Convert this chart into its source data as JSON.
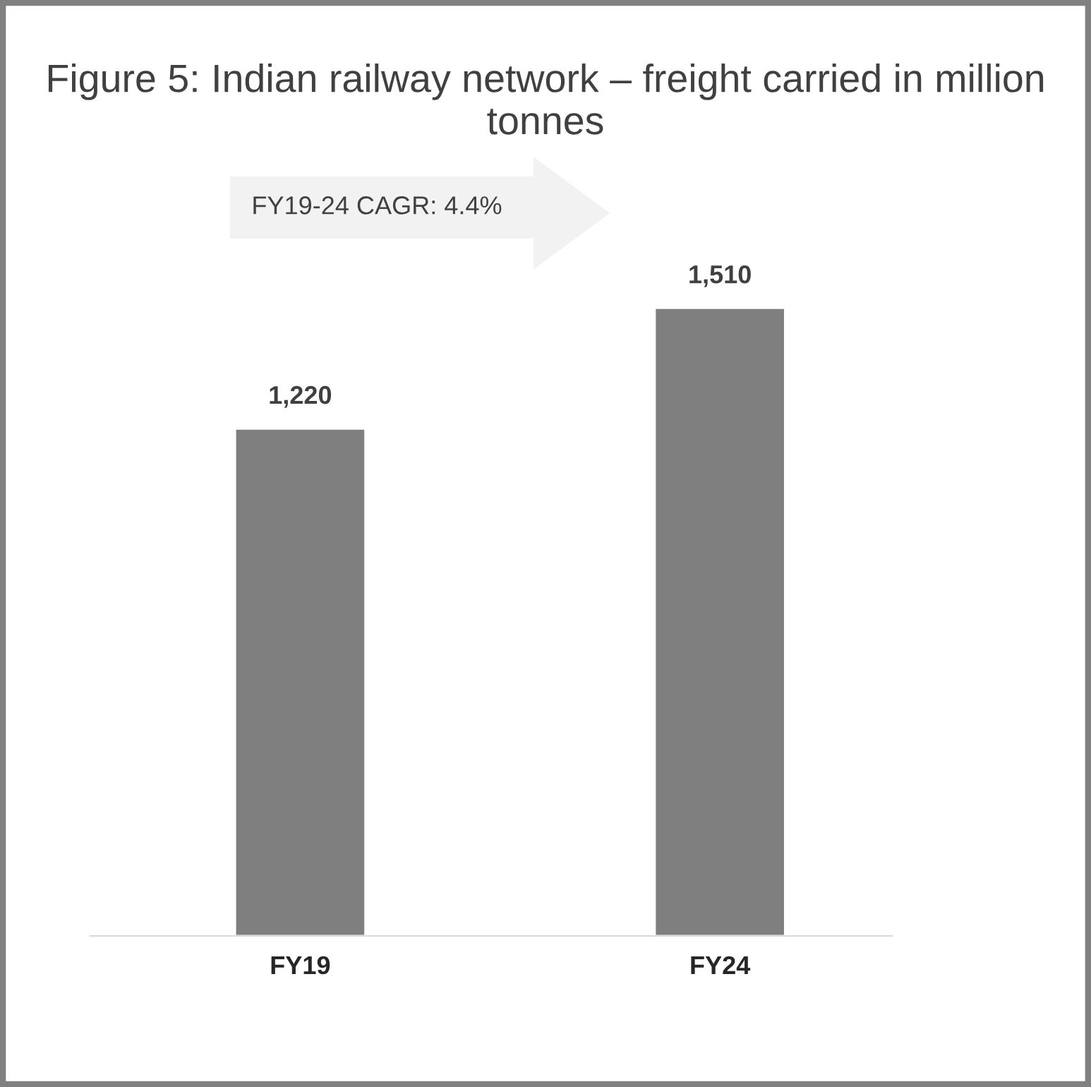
{
  "chart_data": {
    "type": "bar",
    "title": "Figure 5: Indian railway network – freight carried in million tonnes",
    "categories": [
      "FY19",
      "FY24"
    ],
    "values": [
      1220,
      1510
    ],
    "value_labels": [
      "1,220",
      "1,510"
    ],
    "color": "#7f7f7f",
    "tick_labels": "x",
    "annotations": [
      "FY19-24 CAGR: 4.4%"
    ]
  }
}
